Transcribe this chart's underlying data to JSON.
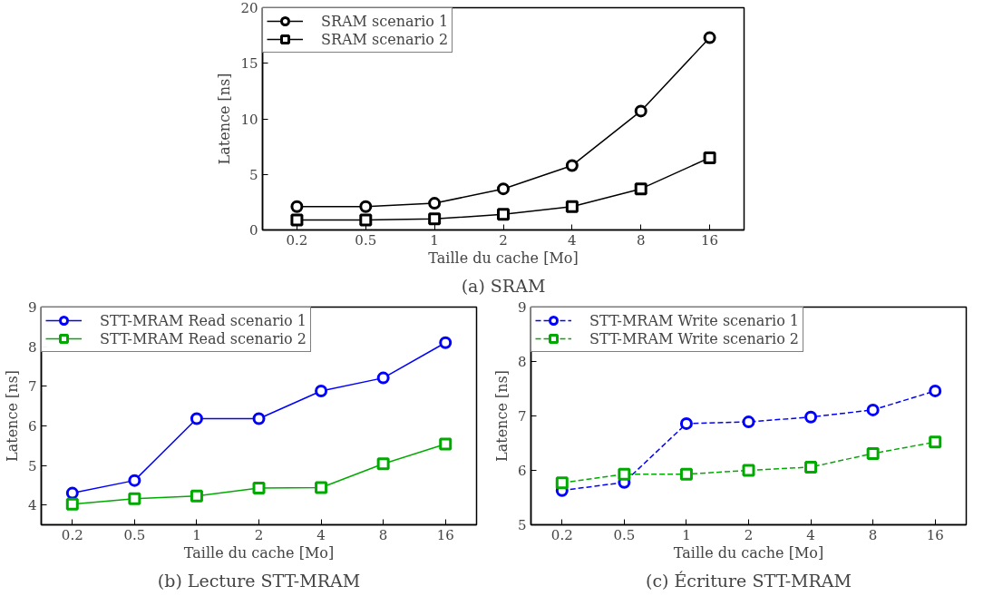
{
  "chart_data": [
    {
      "type": "line",
      "xlabel": "Taille du cache [Mo]",
      "ylabel": "Latence [ns]",
      "annotations": [
        "(a) SRAM"
      ],
      "categories": [
        "0.2",
        "0.5",
        "1",
        "2",
        "4",
        "8",
        "16"
      ],
      "ylim": [
        0,
        20
      ],
      "yticks": [
        0,
        5,
        10,
        15,
        20
      ],
      "grid": false,
      "legend": "top left",
      "line_style": "solid",
      "series": [
        {
          "name": "SRAM scenario 1",
          "color": "#000000",
          "marker": "circle",
          "values": [
            2.1,
            2.1,
            2.4,
            3.7,
            5.8,
            10.7,
            17.3
          ]
        },
        {
          "name": "SRAM scenario 2",
          "color": "#000000",
          "marker": "square",
          "values": [
            0.9,
            0.9,
            1.0,
            1.4,
            2.1,
            3.7,
            6.5
          ]
        }
      ]
    },
    {
      "type": "line",
      "xlabel": "Taille du cache [Mo]",
      "ylabel": "Latence [ns]",
      "annotations": [
        "(b) Lecture STT-MRAM"
      ],
      "categories": [
        "0.2",
        "0.5",
        "1",
        "2",
        "4",
        "8",
        "16"
      ],
      "ylim": [
        3.5,
        9
      ],
      "yticks": [
        4,
        5,
        6,
        7,
        8,
        9
      ],
      "grid": false,
      "legend": "top left",
      "line_style": "solid",
      "series": [
        {
          "name": "STT-MRAM Read scenario 1",
          "color": "#0000ff",
          "marker": "circle",
          "values": [
            4.3,
            4.62,
            6.18,
            6.18,
            6.88,
            7.21,
            8.1
          ]
        },
        {
          "name": "STT-MRAM Read scenario 2",
          "color": "#00aa00",
          "marker": "square",
          "values": [
            4.02,
            4.16,
            4.23,
            4.43,
            4.44,
            5.04,
            5.54
          ]
        }
      ]
    },
    {
      "type": "line",
      "xlabel": "Taille du cache [Mo]",
      "ylabel": "Latence [ns]",
      "annotations": [
        "(c) Écriture STT-MRAM"
      ],
      "categories": [
        "0.2",
        "0.5",
        "1",
        "2",
        "4",
        "8",
        "16"
      ],
      "ylim": [
        5,
        9
      ],
      "yticks": [
        5,
        6,
        7,
        8,
        9
      ],
      "grid": false,
      "legend": "top left",
      "line_style": "dashed",
      "series": [
        {
          "name": "STT-MRAM Write scenario 1",
          "color": "#0000ff",
          "marker": "circle",
          "values": [
            5.63,
            5.78,
            6.86,
            6.89,
            6.98,
            7.11,
            7.46
          ]
        },
        {
          "name": "STT-MRAM Write scenario 2",
          "color": "#00aa00",
          "marker": "square",
          "values": [
            5.77,
            5.93,
            5.93,
            6.0,
            6.06,
            6.31,
            6.52
          ]
        }
      ]
    }
  ]
}
